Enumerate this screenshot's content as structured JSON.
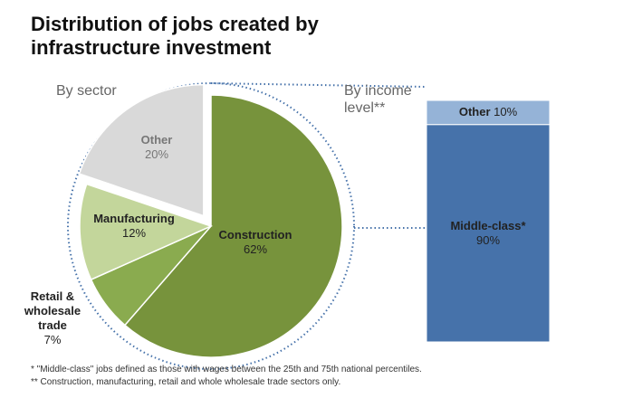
{
  "title": "Distribution of jobs created by infrastructure investment",
  "chart_data": [
    {
      "type": "pie",
      "title": "By sector",
      "categories": [
        "Construction",
        "Retail & wholesale trade",
        "Manufacturing",
        "Other"
      ],
      "values": [
        62,
        7,
        12,
        20
      ],
      "value_labels": [
        "62%",
        "7%",
        "12%",
        "20%"
      ],
      "colors": [
        "#77933c",
        "#8aab4f",
        "#c3d69b",
        "#d9d9d9"
      ],
      "exploded": "Other"
    },
    {
      "type": "stacked-bar",
      "title": "By income level**",
      "categories": [
        "Middle-class*",
        "Other"
      ],
      "values": [
        90,
        10
      ],
      "value_labels": [
        "90%",
        "10%"
      ],
      "colors": [
        "#4672aa",
        "#95b3d7"
      ],
      "ylim": [
        0,
        100
      ]
    }
  ],
  "footnotes": [
    "* \"Middle-class\" jobs defined as those with wages between the 25th and 75th national percentiles.",
    "** Construction, manufacturing, retail and whole wholesale trade sectors only."
  ]
}
